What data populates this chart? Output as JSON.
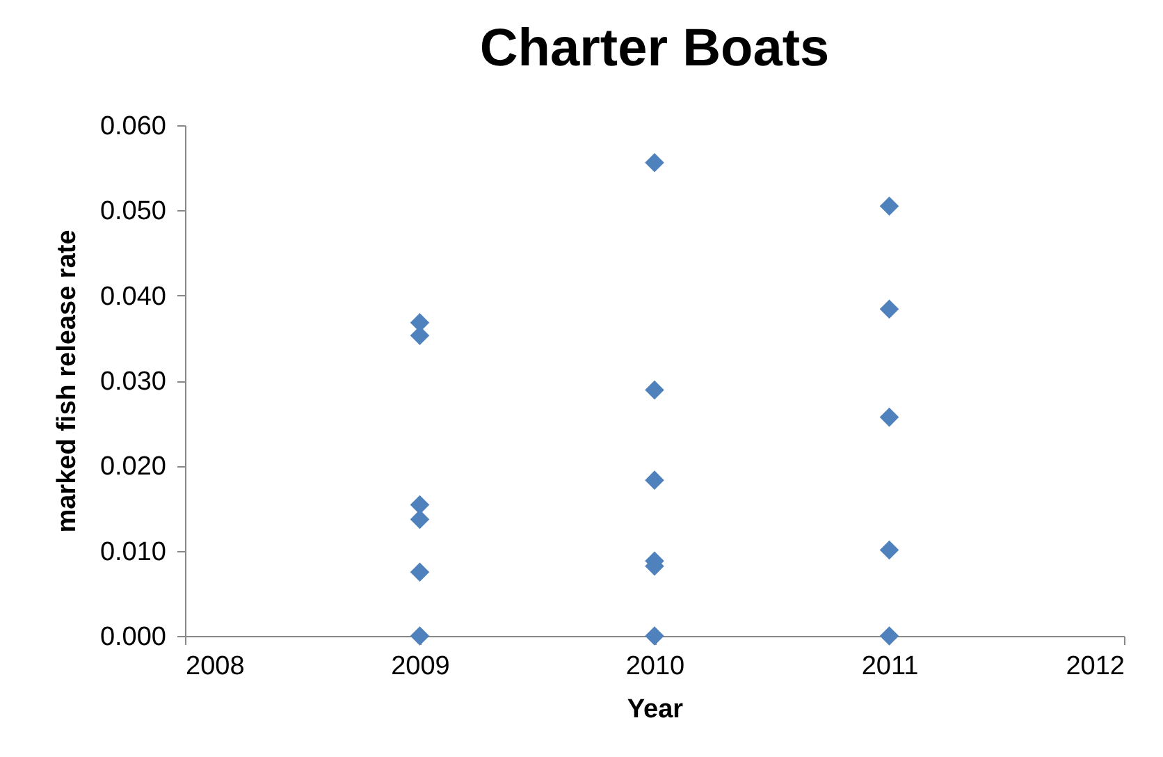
{
  "chart_data": {
    "type": "scatter",
    "title": "Charter Boats",
    "xlabel": "Year",
    "ylabel": "marked fish release rate",
    "x": [
      2009,
      2009,
      2009,
      2009,
      2009,
      2009,
      2010,
      2010,
      2010,
      2010,
      2010,
      2010,
      2011,
      2011,
      2011,
      2011,
      2011
    ],
    "values": [
      0.0368,
      0.0353,
      0.0154,
      0.0137,
      0.0075,
      0,
      0.0556,
      0.0289,
      0.0183,
      0.0088,
      0.0082,
      0,
      0.0505,
      0.0384,
      0.0257,
      0.0101,
      0
    ],
    "color": "#4f81bd",
    "marker": "diamond",
    "xlim": [
      2008,
      2012
    ],
    "xticks": [
      2008,
      2009,
      2010,
      2011,
      2012
    ],
    "ylim": [
      0,
      0.06
    ],
    "yticks": [
      {
        "value": 0,
        "label": "0.000"
      },
      {
        "value": 0.01,
        "label": "0.010"
      },
      {
        "value": 0.02,
        "label": "0.020"
      },
      {
        "value": 0.03,
        "label": "0.030"
      },
      {
        "value": 0.04,
        "label": "0.040"
      },
      {
        "value": 0.05,
        "label": "0.050"
      },
      {
        "value": 0.06,
        "label": "0.060"
      }
    ],
    "grid": false
  }
}
